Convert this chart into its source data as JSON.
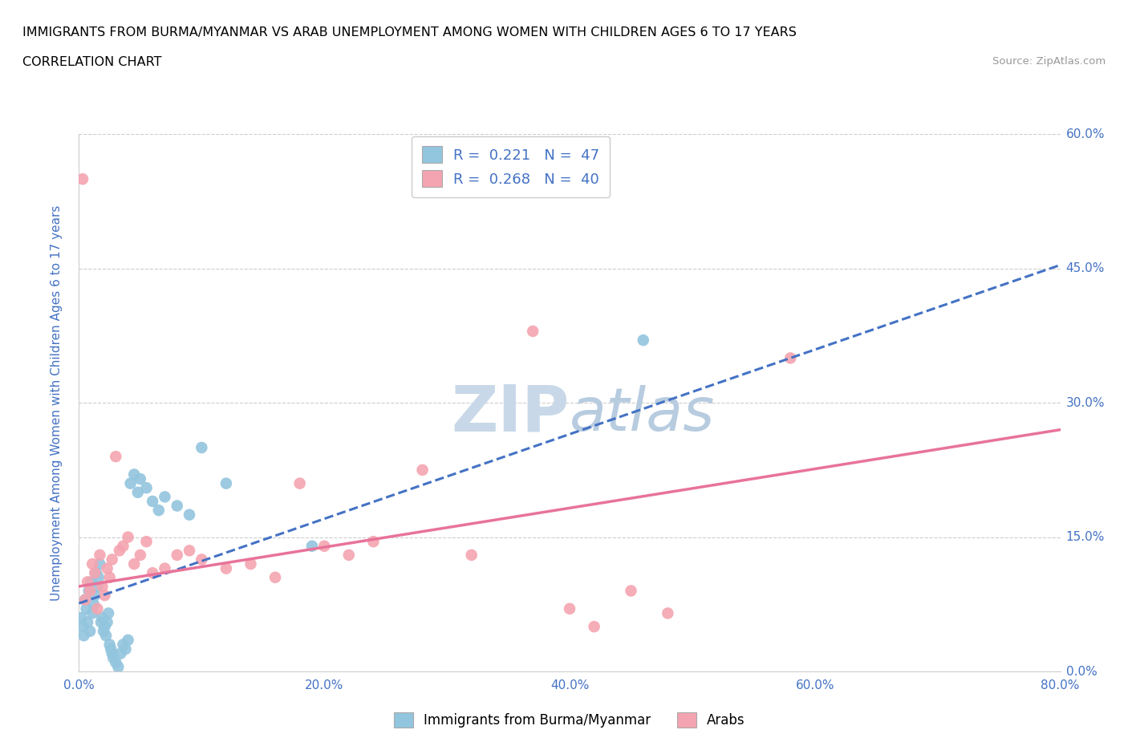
{
  "title_line1": "IMMIGRANTS FROM BURMA/MYANMAR VS ARAB UNEMPLOYMENT AMONG WOMEN WITH CHILDREN AGES 6 TO 17 YEARS",
  "title_line2": "CORRELATION CHART",
  "source_text": "Source: ZipAtlas.com",
  "ylabel": "Unemployment Among Women with Children Ages 6 to 17 years",
  "xlim": [
    0.0,
    0.8
  ],
  "ylim": [
    0.0,
    0.6
  ],
  "xticks": [
    0.0,
    0.2,
    0.4,
    0.6,
    0.8
  ],
  "yticks": [
    0.0,
    0.15,
    0.3,
    0.45,
    0.6
  ],
  "ytick_labels_right": [
    "0.0%",
    "15.0%",
    "30.0%",
    "45.0%",
    "60.0%"
  ],
  "xtick_labels": [
    "0.0%",
    "20.0%",
    "40.0%",
    "60.0%",
    "80.0%"
  ],
  "blue_R": 0.221,
  "blue_N": 47,
  "pink_R": 0.268,
  "pink_N": 40,
  "blue_color": "#92C5DE",
  "pink_color": "#F4A4B0",
  "blue_line_color": "#4472C4",
  "pink_line_color": "#E8739A",
  "watermark_color": "#C8D8E8",
  "legend_label_blue": "Immigrants from Burma/Myanmar",
  "legend_label_pink": "Arabs",
  "axis_color": "#4472C4",
  "blue_scatter_x": [
    0.002,
    0.003,
    0.004,
    0.005,
    0.006,
    0.007,
    0.008,
    0.009,
    0.01,
    0.011,
    0.012,
    0.013,
    0.014,
    0.015,
    0.016,
    0.017,
    0.018,
    0.019,
    0.02,
    0.021,
    0.022,
    0.023,
    0.024,
    0.025,
    0.026,
    0.027,
    0.028,
    0.03,
    0.032,
    0.034,
    0.036,
    0.038,
    0.04,
    0.042,
    0.045,
    0.048,
    0.05,
    0.055,
    0.06,
    0.065,
    0.07,
    0.08,
    0.09,
    0.1,
    0.12,
    0.19,
    0.46
  ],
  "blue_scatter_y": [
    0.06,
    0.05,
    0.04,
    0.08,
    0.07,
    0.055,
    0.09,
    0.045,
    0.1,
    0.065,
    0.075,
    0.085,
    0.11,
    0.095,
    0.105,
    0.12,
    0.055,
    0.06,
    0.045,
    0.05,
    0.04,
    0.055,
    0.065,
    0.03,
    0.025,
    0.02,
    0.015,
    0.01,
    0.005,
    0.02,
    0.03,
    0.025,
    0.035,
    0.21,
    0.22,
    0.2,
    0.215,
    0.205,
    0.19,
    0.18,
    0.195,
    0.185,
    0.175,
    0.25,
    0.21,
    0.14,
    0.37
  ],
  "pink_scatter_x": [
    0.003,
    0.005,
    0.007,
    0.009,
    0.011,
    0.013,
    0.015,
    0.017,
    0.019,
    0.021,
    0.023,
    0.025,
    0.027,
    0.03,
    0.033,
    0.036,
    0.04,
    0.045,
    0.05,
    0.055,
    0.06,
    0.07,
    0.08,
    0.09,
    0.1,
    0.12,
    0.14,
    0.16,
    0.18,
    0.2,
    0.22,
    0.24,
    0.28,
    0.32,
    0.37,
    0.4,
    0.42,
    0.45,
    0.48,
    0.58
  ],
  "pink_scatter_y": [
    0.55,
    0.08,
    0.1,
    0.09,
    0.12,
    0.11,
    0.07,
    0.13,
    0.095,
    0.085,
    0.115,
    0.105,
    0.125,
    0.24,
    0.135,
    0.14,
    0.15,
    0.12,
    0.13,
    0.145,
    0.11,
    0.115,
    0.13,
    0.135,
    0.125,
    0.115,
    0.12,
    0.105,
    0.21,
    0.14,
    0.13,
    0.145,
    0.225,
    0.13,
    0.38,
    0.07,
    0.05,
    0.09,
    0.065,
    0.35
  ],
  "blue_line_x": [
    0.0,
    0.8
  ],
  "blue_line_y": [
    0.076,
    0.454
  ],
  "pink_line_x": [
    0.0,
    0.8
  ],
  "pink_line_y": [
    0.095,
    0.27
  ]
}
